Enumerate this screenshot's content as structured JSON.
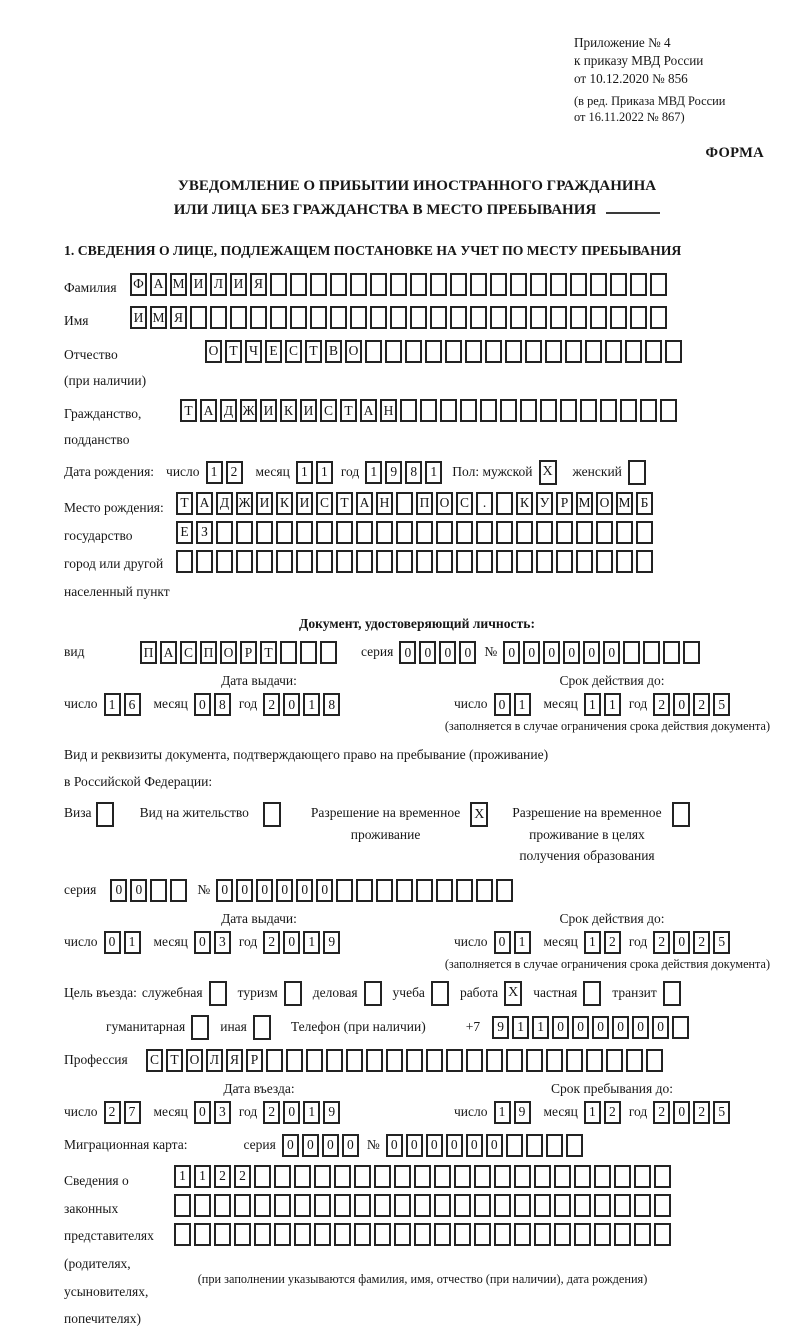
{
  "meta": {
    "appendix_lines": [
      "Приложение № 4",
      "к приказу МВД России",
      "от 10.12.2020 № 856"
    ],
    "revision_lines": [
      "(в ред. Приказа МВД России",
      "от 16.11.2022 № 867)"
    ],
    "form_word": "ФОРМА"
  },
  "title": {
    "line1": "УВЕДОМЛЕНИЕ О ПРИБЫТИИ ИНОСТРАННОГО ГРАЖДАНИНА",
    "line2": "ИЛИ ЛИЦА БЕЗ ГРАЖДАНСТВА В МЕСТО ПРЕБЫВАНИЯ"
  },
  "section1_heading": "1. СВЕДЕНИЯ О ЛИЦЕ, ПОДЛЕЖАЩЕМ ПОСТАНОВКЕ НА УЧЕТ ПО МЕСТУ ПРЕБЫВАНИЯ",
  "labels": {
    "day": "число",
    "month": "месяц",
    "year": "год",
    "series": "серия",
    "number": "№",
    "issue_date": "Дата выдачи:",
    "valid_until": "Срок действия до:",
    "valid_note": "(заполняется в случае ограничения срока действия документа)"
  },
  "surname": {
    "label": "Фамилия",
    "value": "ФАМИЛИЯ"
  },
  "firstname": {
    "label": "Имя",
    "value": "ИМЯ"
  },
  "patronymic": {
    "label1": "Отчество",
    "label2": "(при наличии)",
    "value": "ОТЧЕСТВО"
  },
  "citizenship": {
    "label1": "Гражданство,",
    "label2": "подданство",
    "value": "ТАДЖИКИСТАН"
  },
  "birthdate": {
    "label": "Дата рождения:",
    "day": "12",
    "month": "11",
    "year": "1981",
    "male_label": "Пол: мужской",
    "male_mark": "X",
    "female_label": "женский",
    "female_mark": ""
  },
  "birthplace": {
    "label1": "Место рождения:",
    "label2": "государство",
    "label3": "город или другой",
    "label4": "населенный пункт",
    "row1": "ТАДЖИКИСТАН ПОС. КУРМОМБ",
    "row2": "ЕЗ",
    "row3": ""
  },
  "iddoc": {
    "heading": "Документ, удостоверяющий личность:",
    "type_label": "вид",
    "type": "ПАСПОРТ",
    "series": "0000",
    "number": "000000",
    "issue_day": "16",
    "issue_month": "08",
    "issue_year": "2018",
    "expiry_day": "01",
    "expiry_month": "11",
    "expiry_year": "2025"
  },
  "staydoc": {
    "line1": "Вид и реквизиты документа, подтверждающего право на пребывание (проживание)",
    "line2": "в Российской Федерации:",
    "visa_label": "Виза",
    "visa_mark": "",
    "residence_label": "Вид на жительство",
    "residence_mark": "",
    "rvp_label1": "Разрешение на временное",
    "rvp_label2": "проживание",
    "rvp_mark": "X",
    "rvp_edu_label1": "Разрешение на временное",
    "rvp_edu_label2": "проживание в целях",
    "rvp_edu_label3": "получения образования",
    "rvp_edu_mark": "",
    "series": "00",
    "number": "000000",
    "issue_day": "01",
    "issue_month": "03",
    "issue_year": "2019",
    "expiry_day": "01",
    "expiry_month": "12",
    "expiry_year": "2025"
  },
  "purpose": {
    "intro": "Цель въезда:",
    "items": [
      {
        "label": "служебная",
        "mark": ""
      },
      {
        "label": "туризм",
        "mark": ""
      },
      {
        "label": "деловая",
        "mark": ""
      },
      {
        "label": "учеба",
        "mark": ""
      },
      {
        "label": "работа",
        "mark": "X"
      },
      {
        "label": "частная",
        "mark": ""
      },
      {
        "label": "транзит",
        "mark": ""
      }
    ],
    "items2": [
      {
        "label": "гуманитарная",
        "mark": ""
      },
      {
        "label": "иная",
        "mark": ""
      }
    ]
  },
  "phone": {
    "label": "Телефон (при наличии)",
    "prefix": "+7",
    "value": "911000000"
  },
  "profession": {
    "label": "Профессия",
    "value": "СТОЛЯР"
  },
  "entry": {
    "header_left": "Дата въезда:",
    "header_right": "Срок пребывания до:",
    "entry_day": "27",
    "entry_month": "03",
    "entry_year": "2019",
    "until_day": "19",
    "until_month": "12",
    "until_year": "2025"
  },
  "migcard": {
    "label": "Миграционная карта:",
    "series": "0000",
    "number": "000000"
  },
  "representatives": {
    "label_lines": [
      "Сведения о",
      "законных",
      "представителях",
      "(родителях,",
      "усыновителях,",
      "попечителях)"
    ],
    "row1": "1122",
    "row2": "",
    "row3": "",
    "note": "(при заполнении указываются фамилия, имя, отчество (при наличии), дата рождения)"
  }
}
